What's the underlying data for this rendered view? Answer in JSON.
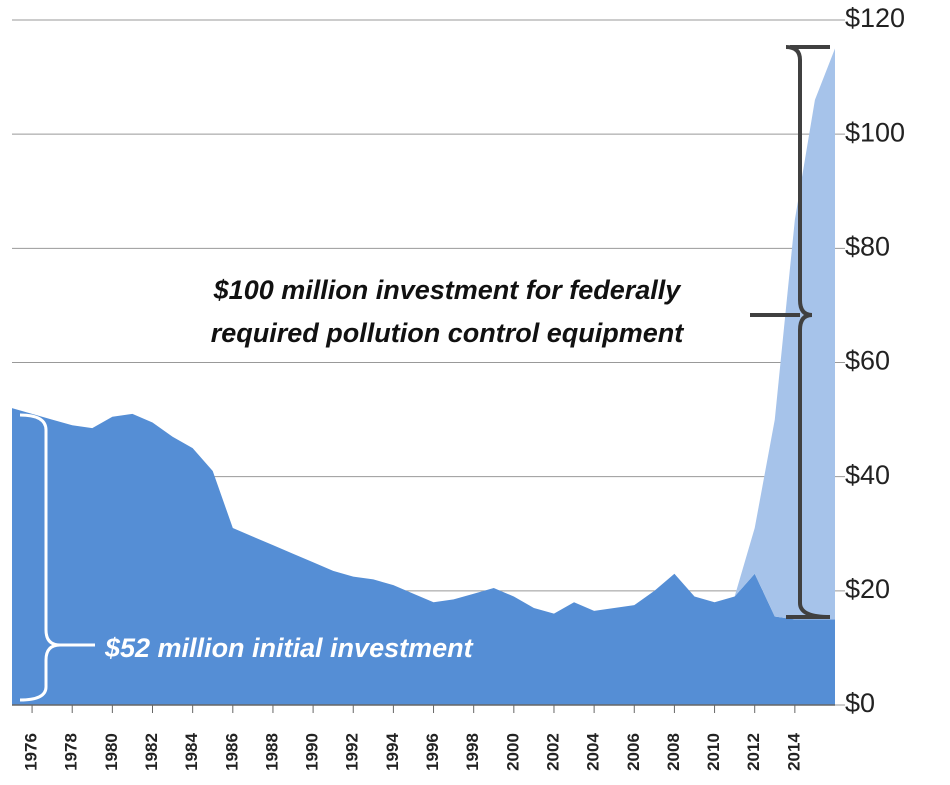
{
  "chart_data": {
    "type": "stacked_area",
    "x": [
      1975,
      1976,
      1977,
      1978,
      1979,
      1980,
      1981,
      1982,
      1983,
      1984,
      1985,
      1986,
      1987,
      1988,
      1989,
      1990,
      1991,
      1992,
      1993,
      1994,
      1995,
      1996,
      1997,
      1998,
      1999,
      2000,
      2001,
      2002,
      2003,
      2004,
      2005,
      2006,
      2007,
      2008,
      2009,
      2010,
      2011,
      2012,
      2013,
      2014,
      2015,
      2016
    ],
    "series": [
      {
        "color": "#558ed5",
        "values": [
          52,
          51,
          50,
          49,
          48.5,
          50.5,
          51,
          49.5,
          47,
          45,
          41,
          31,
          29.5,
          28,
          26.5,
          25,
          23.5,
          22.5,
          22,
          21,
          19.5,
          18,
          18.5,
          19.5,
          20.5,
          19,
          17,
          16,
          18,
          16.5,
          17,
          17.5,
          20,
          23,
          19,
          18,
          19,
          23,
          15.5,
          15,
          15,
          15
        ]
      },
      {
        "color": "#a6c3ea",
        "values": [
          0,
          0,
          0,
          0,
          0,
          0,
          0,
          0,
          0,
          0,
          0,
          0,
          0,
          0,
          0,
          0,
          0,
          0,
          0,
          0,
          0,
          0,
          0,
          0,
          0,
          0,
          0,
          0,
          0,
          0,
          0,
          0,
          0,
          0,
          0,
          0,
          0,
          8,
          34.5,
          70,
          91,
          100
        ]
      }
    ],
    "xlim": [
      1975,
      2016
    ],
    "xticks": [
      1976,
      1978,
      1980,
      1982,
      1984,
      1986,
      1988,
      1990,
      1992,
      1994,
      1996,
      1998,
      2000,
      2002,
      2004,
      2006,
      2008,
      2010,
      2012,
      2014
    ],
    "ylim": [
      0,
      120
    ],
    "yticks": [
      {
        "value": 0,
        "label": "$0"
      },
      {
        "value": 20,
        "label": "$20"
      },
      {
        "value": 40,
        "label": "$40"
      },
      {
        "value": 60,
        "label": "$60"
      },
      {
        "value": 80,
        "label": "$80"
      },
      {
        "value": 100,
        "label": "$100"
      },
      {
        "value": 120,
        "label": "$120"
      }
    ],
    "grid": true,
    "annotation_top": [
      "$100 million investment for federally",
      "required pollution control equipment"
    ],
    "annotation_bottom": "$52 million initial investment"
  }
}
